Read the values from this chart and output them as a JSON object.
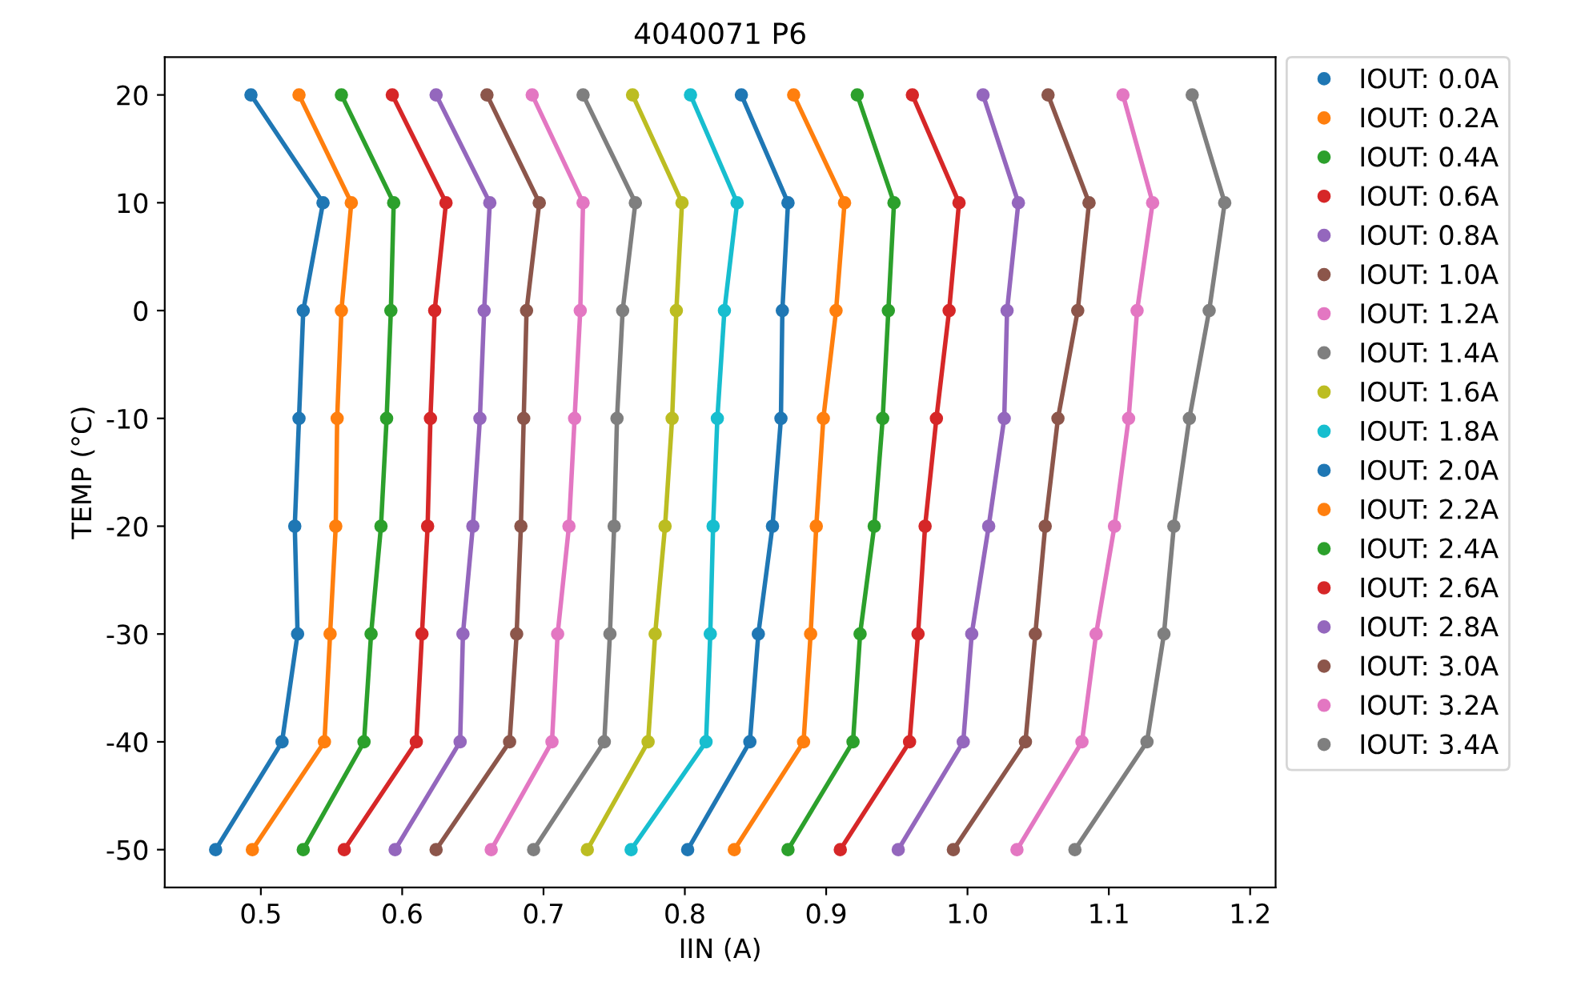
{
  "chart_data": {
    "type": "line",
    "title": "4040071 P6",
    "xlabel": "IIN (A)",
    "ylabel": "TEMP (°C)",
    "marker": "circle",
    "line_style": "solid",
    "legend": "right",
    "grid": false,
    "xlim": [
      0.432,
      1.218
    ],
    "xticks": [
      {
        "value": 0.5,
        "label": "0.5"
      },
      {
        "value": 0.6,
        "label": "0.6"
      },
      {
        "value": 0.7,
        "label": "0.7"
      },
      {
        "value": 0.8,
        "label": "0.8"
      },
      {
        "value": 0.9,
        "label": "0.9"
      },
      {
        "value": 1.0,
        "label": "1.0"
      },
      {
        "value": 1.1,
        "label": "1.1"
      },
      {
        "value": 1.2,
        "label": "1.2"
      }
    ],
    "ylim": [
      -53.5,
      23.5
    ],
    "yticks": [
      -50,
      -40,
      -30,
      -20,
      -10,
      0,
      10,
      20
    ],
    "series": [
      {
        "name": "IOUT: 0.0A",
        "color": "#1f77b4",
        "x": [
          0.493,
          0.544,
          0.53,
          0.527,
          0.524,
          0.526,
          0.515,
          0.468
        ],
        "values": [
          20,
          10,
          0,
          -10,
          -20,
          -30,
          -40,
          -50
        ]
      },
      {
        "name": "IOUT: 0.2A",
        "color": "#ff7f0e",
        "x": [
          0.527,
          0.564,
          0.557,
          0.554,
          0.553,
          0.549,
          0.545,
          0.494
        ],
        "values": [
          20,
          10,
          0,
          -10,
          -20,
          -30,
          -40,
          -50
        ]
      },
      {
        "name": "IOUT: 0.4A",
        "color": "#2ca02c",
        "x": [
          0.557,
          0.594,
          0.592,
          0.589,
          0.585,
          0.578,
          0.573,
          0.53
        ],
        "values": [
          20,
          10,
          0,
          -10,
          -20,
          -30,
          -40,
          -50
        ]
      },
      {
        "name": "IOUT: 0.6A",
        "color": "#d62728",
        "x": [
          0.593,
          0.631,
          0.623,
          0.62,
          0.618,
          0.614,
          0.61,
          0.559
        ],
        "values": [
          20,
          10,
          0,
          -10,
          -20,
          -30,
          -40,
          -50
        ]
      },
      {
        "name": "IOUT: 0.8A",
        "color": "#9467bd",
        "x": [
          0.624,
          0.662,
          0.658,
          0.655,
          0.65,
          0.643,
          0.641,
          0.595
        ],
        "values": [
          20,
          10,
          0,
          -10,
          -20,
          -30,
          -40,
          -50
        ]
      },
      {
        "name": "IOUT: 1.0A",
        "color": "#8c564b",
        "x": [
          0.66,
          0.697,
          0.688,
          0.686,
          0.684,
          0.681,
          0.676,
          0.624
        ],
        "values": [
          20,
          10,
          0,
          -10,
          -20,
          -30,
          -40,
          -50
        ]
      },
      {
        "name": "IOUT: 1.2A",
        "color": "#e377c2",
        "x": [
          0.692,
          0.728,
          0.726,
          0.722,
          0.718,
          0.71,
          0.706,
          0.663
        ],
        "values": [
          20,
          10,
          0,
          -10,
          -20,
          -30,
          -40,
          -50
        ]
      },
      {
        "name": "IOUT: 1.4A",
        "color": "#7f7f7f",
        "x": [
          0.728,
          0.765,
          0.756,
          0.752,
          0.75,
          0.747,
          0.743,
          0.693
        ],
        "values": [
          20,
          10,
          0,
          -10,
          -20,
          -30,
          -40,
          -50
        ]
      },
      {
        "name": "IOUT: 1.6A",
        "color": "#bcbd22",
        "x": [
          0.763,
          0.798,
          0.794,
          0.791,
          0.786,
          0.779,
          0.774,
          0.731
        ],
        "values": [
          20,
          10,
          0,
          -10,
          -20,
          -30,
          -40,
          -50
        ]
      },
      {
        "name": "IOUT: 1.8A",
        "color": "#17becf",
        "x": [
          0.804,
          0.837,
          0.828,
          0.823,
          0.82,
          0.818,
          0.815,
          0.762
        ],
        "values": [
          20,
          10,
          0,
          -10,
          -20,
          -30,
          -40,
          -50
        ]
      },
      {
        "name": "IOUT: 2.0A",
        "color": "#1f77b4",
        "x": [
          0.84,
          0.873,
          0.869,
          0.868,
          0.862,
          0.852,
          0.846,
          0.802
        ],
        "values": [
          20,
          10,
          0,
          -10,
          -20,
          -30,
          -40,
          -50
        ]
      },
      {
        "name": "IOUT: 2.2A",
        "color": "#ff7f0e",
        "x": [
          0.877,
          0.913,
          0.907,
          0.898,
          0.893,
          0.889,
          0.884,
          0.835
        ],
        "values": [
          20,
          10,
          0,
          -10,
          -20,
          -30,
          -40,
          -50
        ]
      },
      {
        "name": "IOUT: 2.4A",
        "color": "#2ca02c",
        "x": [
          0.922,
          0.948,
          0.944,
          0.94,
          0.934,
          0.924,
          0.919,
          0.873
        ],
        "values": [
          20,
          10,
          0,
          -10,
          -20,
          -30,
          -40,
          -50
        ]
      },
      {
        "name": "IOUT: 2.6A",
        "color": "#d62728",
        "x": [
          0.961,
          0.994,
          0.987,
          0.978,
          0.97,
          0.965,
          0.959,
          0.91
        ],
        "values": [
          20,
          10,
          0,
          -10,
          -20,
          -30,
          -40,
          -50
        ]
      },
      {
        "name": "IOUT: 2.8A",
        "color": "#9467bd",
        "x": [
          1.011,
          1.036,
          1.028,
          1.026,
          1.015,
          1.003,
          0.997,
          0.951
        ],
        "values": [
          20,
          10,
          0,
          -10,
          -20,
          -30,
          -40,
          -50
        ]
      },
      {
        "name": "IOUT: 3.0A",
        "color": "#8c564b",
        "x": [
          1.057,
          1.086,
          1.078,
          1.064,
          1.055,
          1.048,
          1.041,
          0.99
        ],
        "values": [
          20,
          10,
          0,
          -10,
          -20,
          -30,
          -40,
          -50
        ]
      },
      {
        "name": "IOUT: 3.2A",
        "color": "#e377c2",
        "x": [
          1.11,
          1.131,
          1.12,
          1.114,
          1.104,
          1.091,
          1.081,
          1.035
        ],
        "values": [
          20,
          10,
          0,
          -10,
          -20,
          -30,
          -40,
          -50
        ]
      },
      {
        "name": "IOUT: 3.4A",
        "color": "#7f7f7f",
        "x": [
          1.159,
          1.182,
          1.171,
          1.157,
          1.146,
          1.139,
          1.127,
          1.076
        ],
        "values": [
          20,
          10,
          0,
          -10,
          -20,
          -30,
          -40,
          -50
        ]
      }
    ]
  }
}
